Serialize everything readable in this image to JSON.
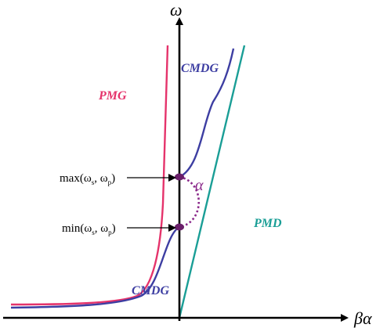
{
  "axes": {
    "y_label": "ω",
    "x_label": "βα"
  },
  "curves": {
    "pmg": {
      "label": "PMG",
      "color": "#e5336b"
    },
    "pmd": {
      "label": "PMD",
      "color": "#1a9e96"
    },
    "cmdg_upper": {
      "label": "CMDG",
      "color": "#3d3ea2"
    },
    "cmdg_lower": {
      "label": "CMDG",
      "color": "#3d3ea2"
    }
  },
  "annotations": {
    "max_label": "max(ω",
    "max_sub1": "s",
    "max_mid": ", ω",
    "max_sub2": "p",
    "max_close": ")",
    "min_label": "min(ω",
    "min_sub1": "s",
    "min_mid": ", ω",
    "min_sub2": "p",
    "min_close": ")",
    "gap_label": "α",
    "gap_color": "#8b2a8b",
    "point_color": "#6a1f6a"
  }
}
